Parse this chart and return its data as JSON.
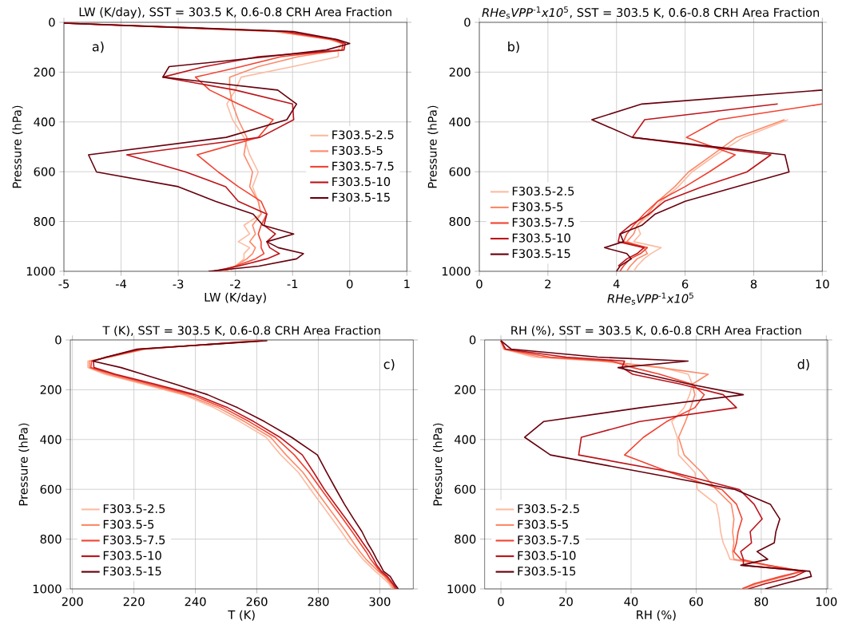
{
  "chart_data": [
    {
      "type": "line",
      "title": "LW (K/day), SST = 303.5 K, 0.6-0.8 CRH Area Fraction",
      "xlabel": "LW (K/day)",
      "ylabel": "Pressure (hPa)",
      "annotations": [
        "a)"
      ],
      "xlim": [
        -5,
        1
      ],
      "ylim": [
        1000,
        0
      ],
      "xticks": [
        -5,
        -4,
        -3,
        -2,
        -1,
        0,
        1
      ],
      "yticks": [
        0,
        200,
        400,
        600,
        800,
        1000
      ],
      "grid": true,
      "legend": "right",
      "marker": "none",
      "line_style": "solid",
      "series": [
        {
          "name": "F303.5-2.5",
          "color": "#fcbba1",
          "x": [
            -5,
            -1.3,
            -0.35,
            -0.15,
            -0.2,
            -0.2,
            -1.0,
            -1.9,
            -2.0,
            -2.15,
            -2.05,
            -1.85,
            -1.75,
            -1.6,
            -1.7,
            -1.6,
            -1.55,
            -1.85,
            -1.75,
            -1.95,
            -1.75,
            -1.85,
            -1.85,
            -2.0,
            -2.1
          ],
          "values": [
            3,
            37,
            69,
            85,
            111,
            138,
            178,
            220,
            272,
            328,
            391,
            462,
            532,
            601,
            660,
            719,
            770,
            815,
            850,
            881,
            905,
            929,
            950,
            979,
            1000
          ]
        },
        {
          "name": "F303.5-5",
          "color": "#fc8a6a",
          "x": [
            -5,
            -1.3,
            -0.35,
            -0.12,
            -0.14,
            -0.9,
            -1.6,
            -2.1,
            -2.1,
            -2.05,
            -1.95,
            -1.8,
            -1.85,
            -1.7,
            -1.75,
            -1.6,
            -1.55,
            -1.7,
            -1.65,
            -1.75,
            -1.65,
            -1.7,
            -1.8,
            -2.0,
            -2.2
          ],
          "values": [
            3,
            37,
            69,
            85,
            111,
            138,
            178,
            220,
            272,
            328,
            391,
            462,
            532,
            601,
            660,
            719,
            770,
            815,
            850,
            881,
            905,
            929,
            950,
            979,
            1000
          ]
        },
        {
          "name": "F303.5-7.5",
          "color": "#f14432",
          "x": [
            -5,
            -1.2,
            -0.3,
            -0.12,
            -0.13,
            -1.2,
            -1.9,
            -2.7,
            -2.45,
            -1.95,
            -1.34,
            -1.6,
            -2.67,
            -2.3,
            -1.95,
            -1.55,
            -1.45,
            -1.55,
            -1.6,
            -1.55,
            -1.55,
            -1.5,
            -1.65,
            -2.0,
            -2.3
          ],
          "values": [
            3,
            37,
            69,
            85,
            111,
            138,
            178,
            220,
            272,
            328,
            391,
            462,
            532,
            601,
            660,
            719,
            770,
            815,
            850,
            881,
            905,
            929,
            950,
            979,
            1000
          ]
        },
        {
          "name": "F303.5-10",
          "color": "#bc141a",
          "x": [
            -5,
            -1.1,
            -0.25,
            -0.08,
            -0.1,
            -1.6,
            -2.54,
            -3.27,
            -2.0,
            -1.0,
            -0.98,
            -1.57,
            -3.9,
            -2.87,
            -2.17,
            -1.95,
            -1.45,
            -1.5,
            -1.3,
            -1.45,
            -1.4,
            -1.23,
            -1.45,
            -1.95,
            -2.4
          ],
          "values": [
            3,
            37,
            69,
            85,
            111,
            138,
            178,
            220,
            272,
            328,
            391,
            462,
            532,
            601,
            660,
            719,
            770,
            815,
            850,
            881,
            905,
            929,
            950,
            979,
            1000
          ]
        },
        {
          "name": "F303.5-15",
          "color": "#67000d",
          "x": [
            -5,
            -0.98,
            -0.22,
            0,
            -0.41,
            -1.45,
            -3.16,
            -3.27,
            -1.26,
            -0.93,
            -1.1,
            -2.16,
            -4.57,
            -4.43,
            -3.0,
            -2.35,
            -1.69,
            -1.52,
            -0.98,
            -1.45,
            -1.25,
            -0.81,
            -0.93,
            -1.59,
            -2.47
          ],
          "values": [
            3,
            37,
            69,
            85,
            111,
            138,
            178,
            220,
            272,
            328,
            391,
            462,
            532,
            601,
            660,
            719,
            770,
            815,
            850,
            881,
            905,
            929,
            950,
            979,
            1000
          ]
        }
      ]
    },
    {
      "type": "line",
      "title": "*RHe*$_{s}$*VPP*$^{-1}$*x10*$^{5}$, SST = 303.5 K, 0.6-0.8 CRH Area Fraction",
      "xlabel": "*RHe*$_{s}$*VPP*$^{-1}$*x10*$^{5}$",
      "ylabel": "Pressure (hPa)",
      "annotations": [
        "b)"
      ],
      "xlim": [
        0,
        10
      ],
      "ylim": [
        1000,
        0
      ],
      "xticks": [
        0,
        2,
        4,
        6,
        8,
        10
      ],
      "yticks": [
        0,
        200,
        400,
        600,
        800,
        1000
      ],
      "grid": true,
      "legend": "bottom left",
      "marker": "none",
      "line_style": "solid",
      "series": [
        {
          "name": "F303.5-2.5",
          "color": "#fcbba1",
          "x": [
            9.0,
            7.7,
            6.9,
            6.2,
            5.8,
            5.3,
            5.0,
            4.6,
            4.7,
            4.5,
            5.3,
            5.0,
            4.8,
            4.6,
            4.5
          ],
          "values": [
            391,
            462,
            532,
            601,
            660,
            719,
            770,
            815,
            850,
            881,
            905,
            929,
            950,
            979,
            1000
          ]
        },
        {
          "name": "F303.5-5",
          "color": "#fc8a6a",
          "x": [
            8.9,
            7.5,
            6.8,
            6.1,
            5.7,
            5.2,
            4.9,
            4.6,
            4.5,
            4.3,
            4.8,
            4.9,
            4.6,
            4.4,
            4.3
          ],
          "values": [
            391,
            462,
            532,
            601,
            660,
            719,
            770,
            815,
            850,
            881,
            905,
            929,
            950,
            979,
            1000
          ]
        },
        {
          "name": "F303.5-7.5",
          "color": "#f14432",
          "x": [
            10,
            6.98,
            6.04,
            7.46,
            6.7,
            6.0,
            5.2,
            4.8,
            4.5,
            4.3,
            4.2,
            4.9,
            4.7,
            4.4,
            4.2,
            4.1
          ],
          "values": [
            328,
            391,
            462,
            532,
            601,
            660,
            719,
            770,
            815,
            850,
            881,
            905,
            929,
            950,
            979,
            1000
          ]
        },
        {
          "name": "F303.5-10",
          "color": "#bc141a",
          "x": [
            8.7,
            4.82,
            4.46,
            8.5,
            7.8,
            6.5,
            5.4,
            4.95,
            4.4,
            4.1,
            4.05,
            4.8,
            4.6,
            4.3,
            4.05
          ],
          "values": [
            328,
            391,
            462,
            532,
            601,
            660,
            719,
            770,
            815,
            850,
            881,
            905,
            929,
            950,
            979
          ]
        },
        {
          "name": "F303.5-15",
          "color": "#67000d",
          "x": [
            10,
            4.74,
            3.28,
            4.46,
            8.91,
            9.03,
            7.5,
            6.0,
            5.13,
            4.74,
            4.11,
            4.2,
            3.65,
            4.3,
            4.43,
            4.1,
            4.0
          ],
          "values": [
            272,
            328,
            391,
            462,
            532,
            601,
            660,
            719,
            770,
            815,
            850,
            881,
            905,
            929,
            950,
            979,
            1000
          ]
        }
      ]
    },
    {
      "type": "line",
      "title": "T (K), SST = 303.5 K, 0.6-0.8 CRH Area Fraction",
      "xlabel": "T (K)",
      "ylabel": "Pressure (hPa)",
      "annotations": [
        "c)"
      ],
      "xlim": [
        199.3,
        310.9
      ],
      "ylim": [
        1000,
        0
      ],
      "xticks": [
        200,
        220,
        240,
        260,
        280,
        300
      ],
      "yticks": [
        0,
        200,
        400,
        600,
        800,
        1000
      ],
      "grid": true,
      "legend": "bottom left",
      "marker": "none",
      "line_style": "solid",
      "series": [
        {
          "name": "F303.5-2.5",
          "color": "#fcbba1",
          "x": [
            259,
            224,
            212,
            205,
            205,
            210.5,
            223,
            236,
            246,
            254.5,
            263,
            267.8,
            273.5,
            277.5,
            281,
            284.5,
            287.5,
            290,
            292.5,
            294.5,
            296.5,
            298.5,
            300.5,
            303,
            304
          ],
          "values": [
            3,
            37,
            69,
            85,
            111,
            138,
            178,
            220,
            272,
            328,
            391,
            462,
            532,
            601,
            660,
            719,
            770,
            815,
            850,
            881,
            905,
            929,
            950,
            979,
            1000
          ]
        },
        {
          "name": "F303.5-5",
          "color": "#fc8a6a",
          "x": [
            260,
            223,
            212,
            205.5,
            205.5,
            211.5,
            224,
            237,
            247.5,
            256,
            264.5,
            269.5,
            275,
            279,
            282.5,
            286,
            289,
            291.5,
            293.5,
            295.5,
            297.5,
            299.5,
            301.5,
            303.5,
            304.5
          ],
          "values": [
            3,
            37,
            69,
            85,
            111,
            138,
            178,
            220,
            272,
            328,
            391,
            462,
            532,
            601,
            660,
            719,
            770,
            815,
            850,
            881,
            905,
            929,
            950,
            979,
            1000
          ]
        },
        {
          "name": "F303.5-7.5",
          "color": "#f14432",
          "x": [
            261,
            223,
            211.5,
            206.2,
            206,
            213,
            225.5,
            238.7,
            249,
            257.5,
            266,
            272.2,
            277,
            281,
            284.5,
            288,
            291,
            293.5,
            295.5,
            297,
            298.5,
            300,
            302,
            304,
            305
          ],
          "values": [
            3,
            37,
            69,
            85,
            111,
            138,
            178,
            220,
            272,
            328,
            391,
            462,
            532,
            601,
            660,
            719,
            770,
            815,
            850,
            881,
            905,
            929,
            950,
            979,
            1000
          ]
        },
        {
          "name": "F303.5-10",
          "color": "#bc141a",
          "x": [
            262,
            222,
            211,
            206.8,
            207,
            214,
            227,
            240,
            250.5,
            259,
            267.5,
            274.8,
            278.5,
            282,
            285.5,
            289,
            292,
            294.5,
            296.5,
            298,
            299,
            300.5,
            302.5,
            304.3,
            305.5
          ],
          "values": [
            3,
            37,
            69,
            85,
            111,
            138,
            178,
            220,
            272,
            328,
            391,
            462,
            532,
            601,
            660,
            719,
            770,
            815,
            850,
            881,
            905,
            929,
            950,
            979,
            1000
          ]
        },
        {
          "name": "F303.5-15",
          "color": "#67000d",
          "x": [
            263.4,
            221,
            211,
            206.6,
            215.8,
            222.9,
            233.5,
            244,
            253.7,
            262.5,
            271.3,
            279.7,
            282.7,
            285.8,
            288.5,
            291.5,
            294.2,
            296,
            297.7,
            299,
            300.2,
            301.2,
            303.4,
            304.8,
            306
          ],
          "values": [
            3,
            37,
            69,
            85,
            111,
            138,
            178,
            220,
            272,
            328,
            391,
            462,
            532,
            601,
            660,
            719,
            770,
            815,
            850,
            881,
            905,
            929,
            950,
            979,
            1000
          ]
        }
      ]
    },
    {
      "type": "line",
      "title": "RH (%), SST = 303.5 K, 0.6-0.8 CRH Area Fraction",
      "xlabel": "RH (%)",
      "ylabel": "Pressure (hPa)",
      "annotations": [
        "d)"
      ],
      "xlim": [
        -5,
        100.4
      ],
      "ylim": [
        1000,
        0
      ],
      "xticks": [
        0,
        20,
        40,
        60,
        80,
        100
      ],
      "yticks": [
        0,
        200,
        400,
        600,
        800,
        1000
      ],
      "grid": true,
      "legend": "bottom left",
      "marker": "none",
      "line_style": "solid",
      "series": [
        {
          "name": "F303.5-2.5",
          "color": "#fcbba1",
          "x": [
            0,
            0.8,
            10,
            29.7,
            49.6,
            57.6,
            58.8,
            58.0,
            56.3,
            52.5,
            54.2,
            54.6,
            59.6,
            60.4,
            66.2,
            67.1,
            67.5,
            68.3,
            69.5,
            70.4,
            82,
            92,
            87,
            78.7,
            73.7
          ],
          "values": [
            3,
            37,
            69,
            85,
            111,
            138,
            178,
            220,
            272,
            328,
            391,
            462,
            532,
            601,
            660,
            719,
            770,
            815,
            850,
            881,
            905,
            929,
            950,
            979,
            1000
          ]
        },
        {
          "name": "F303.5-5",
          "color": "#fc8a6a",
          "x": [
            0,
            1,
            12,
            32.2,
            48.8,
            63.7,
            58.8,
            59.6,
            58.3,
            56.7,
            54.6,
            56.3,
            61.7,
            66.2,
            70.8,
            71.6,
            71.2,
            71.6,
            71.2,
            71.6,
            82,
            92.8,
            87,
            78.7,
            74.5
          ],
          "values": [
            3,
            37,
            69,
            85,
            111,
            138,
            178,
            220,
            272,
            328,
            391,
            462,
            532,
            601,
            660,
            719,
            770,
            815,
            850,
            881,
            905,
            929,
            950,
            979,
            1000
          ]
        },
        {
          "name": "F303.5-7.5",
          "color": "#f14432",
          "x": [
            0,
            1.2,
            15,
            34,
            40.5,
            48.8,
            58.8,
            62.5,
            59.6,
            50.9,
            43.8,
            38,
            52,
            67.9,
            72.4,
            74.1,
            72.9,
            72.4,
            71.6,
            73.7,
            82,
            92.8,
            86,
            77.8,
            74.1
          ],
          "values": [
            3,
            37,
            69,
            85,
            111,
            138,
            178,
            220,
            272,
            328,
            391,
            462,
            532,
            601,
            660,
            719,
            770,
            815,
            850,
            881,
            905,
            929,
            950,
            979,
            1000
          ]
        },
        {
          "name": "F303.5-10",
          "color": "#bc141a",
          "x": [
            0,
            1.5,
            20,
            38,
            37.2,
            40.5,
            55.4,
            68.3,
            72.4,
            42.6,
            24.7,
            23.9,
            53,
            73.3,
            77.8,
            80.3,
            76.6,
            77,
            73.7,
            74.5,
            74.5,
            93.6,
            90.3,
            81.2,
            76
          ],
          "values": [
            3,
            37,
            69,
            85,
            111,
            138,
            178,
            220,
            272,
            328,
            391,
            462,
            532,
            601,
            660,
            719,
            770,
            815,
            850,
            881,
            905,
            929,
            950,
            979,
            1000
          ]
        },
        {
          "name": "F303.5-15",
          "color": "#67000d",
          "x": [
            0,
            3.2,
            29.7,
            57.5,
            36,
            44.6,
            58,
            74.5,
            43,
            13.1,
            7.3,
            15.2,
            44,
            72,
            82.8,
            85.7,
            84.5,
            84,
            78.7,
            82,
            73.7,
            94.9,
            95.4,
            87,
            81.2
          ],
          "values": [
            3,
            37,
            69,
            85,
            111,
            138,
            178,
            220,
            272,
            328,
            391,
            462,
            532,
            601,
            660,
            719,
            770,
            815,
            850,
            881,
            905,
            929,
            950,
            979,
            1000
          ]
        }
      ]
    }
  ]
}
